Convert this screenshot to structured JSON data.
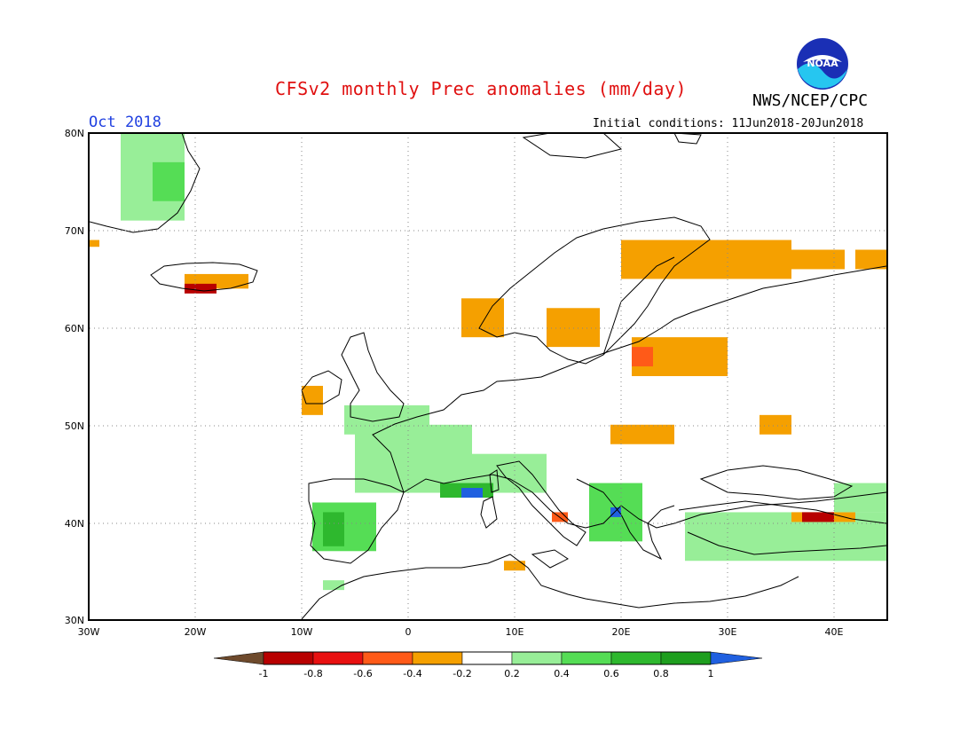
{
  "header": {
    "title": "CFSv2 monthly Prec anomalies (mm/day)",
    "month": "Oct 2018",
    "agency": "NWS/NCEP/CPC",
    "initial_conditions": "Initial conditions: 11Jun2018-20Jun2018",
    "logo_text": "NOAA"
  },
  "axes": {
    "lat_labels": [
      "80N",
      "70N",
      "60N",
      "50N",
      "40N",
      "30N"
    ],
    "lon_labels": [
      "30W",
      "20W",
      "10W",
      "0",
      "10E",
      "20E",
      "30E",
      "40E"
    ]
  },
  "colorbar": {
    "ticks": [
      "-1",
      "-0.8",
      "-0.6",
      "-0.4",
      "-0.2",
      "0.2",
      "0.4",
      "0.6",
      "0.8",
      "1"
    ],
    "colors": [
      "#6e4a2c",
      "#b80000",
      "#e81010",
      "#ff5a18",
      "#f5a000",
      "#ffffff",
      "#98ee98",
      "#55dd55",
      "#2eb82e",
      "#1e9e1e",
      "#2060e0"
    ]
  },
  "map": {
    "land_color": "#ffffff",
    "coast_color": "#000000",
    "grid_style": "dotted",
    "anomaly_patches": [
      {
        "name": "greenland",
        "color": "#98ee98",
        "lon": [
          -27,
          -21
        ],
        "lat": [
          71,
          80
        ]
      },
      {
        "name": "greenland-core",
        "color": "#55dd55",
        "lon": [
          -24,
          -21
        ],
        "lat": [
          73,
          77
        ]
      },
      {
        "name": "iceland",
        "color": "#f5a000",
        "lon": [
          -21,
          -15
        ],
        "lat": [
          64,
          65.5
        ]
      },
      {
        "name": "iceland-dry",
        "color": "#b80000",
        "lon": [
          -21,
          -18
        ],
        "lat": [
          63.5,
          64.5
        ]
      },
      {
        "name": "jan-mayen",
        "color": "#f5a000",
        "lon": [
          -30,
          -29
        ],
        "lat": [
          68.3,
          69
        ]
      },
      {
        "name": "norway",
        "color": "#f5a000",
        "lon": [
          5,
          9
        ],
        "lat": [
          59,
          63
        ]
      },
      {
        "name": "sweden",
        "color": "#f5a000",
        "lon": [
          13,
          18
        ],
        "lat": [
          58,
          62
        ]
      },
      {
        "name": "n-scandinavia",
        "color": "#f5a000",
        "lon": [
          20,
          36
        ],
        "lat": [
          65,
          69
        ]
      },
      {
        "name": "kola",
        "color": "#f5a000",
        "lon": [
          35,
          41
        ],
        "lat": [
          66,
          68
        ]
      },
      {
        "name": "barents-east",
        "color": "#f5a000",
        "lon": [
          42,
          45
        ],
        "lat": [
          66,
          68
        ]
      },
      {
        "name": "baltic",
        "color": "#f5a000",
        "lon": [
          21,
          30
        ],
        "lat": [
          55,
          59
        ]
      },
      {
        "name": "baltic-dry",
        "color": "#ff5a18",
        "lon": [
          21,
          23
        ],
        "lat": [
          56,
          58
        ]
      },
      {
        "name": "ukraine",
        "color": "#f5a000",
        "lon": [
          33,
          36
        ],
        "lat": [
          49,
          51
        ]
      },
      {
        "name": "poland-south",
        "color": "#f5a000",
        "lon": [
          19,
          25
        ],
        "lat": [
          48,
          50
        ]
      },
      {
        "name": "ireland",
        "color": "#f5a000",
        "lon": [
          -10,
          -8
        ],
        "lat": [
          51,
          54
        ]
      },
      {
        "name": "england",
        "color": "#98ee98",
        "lon": [
          -6,
          2
        ],
        "lat": [
          49,
          52
        ]
      },
      {
        "name": "france",
        "color": "#98ee98",
        "lon": [
          -5,
          6
        ],
        "lat": [
          43,
          50
        ]
      },
      {
        "name": "alps",
        "color": "#98ee98",
        "lon": [
          5,
          13
        ],
        "lat": [
          43,
          47
        ]
      },
      {
        "name": "gulf-lion",
        "color": "#2eb82e",
        "lon": [
          3,
          8
        ],
        "lat": [
          42.5,
          44
        ]
      },
      {
        "name": "gulf-lion-wet",
        "color": "#2060e0",
        "lon": [
          5,
          7
        ],
        "lat": [
          42.5,
          43.5
        ]
      },
      {
        "name": "iberia",
        "color": "#55dd55",
        "lon": [
          -9,
          -3
        ],
        "lat": [
          37,
          42
        ]
      },
      {
        "name": "iberia-core",
        "color": "#2eb82e",
        "lon": [
          -8,
          -6
        ],
        "lat": [
          37.5,
          41
        ]
      },
      {
        "name": "balkans",
        "color": "#55dd55",
        "lon": [
          17,
          22
        ],
        "lat": [
          38,
          44
        ]
      },
      {
        "name": "albania",
        "color": "#2060e0",
        "lon": [
          19,
          20
        ],
        "lat": [
          40.5,
          41.5
        ]
      },
      {
        "name": "italy-south",
        "color": "#ff5a18",
        "lon": [
          13.5,
          15
        ],
        "lat": [
          40,
          41
        ]
      },
      {
        "name": "turkey",
        "color": "#98ee98",
        "lon": [
          26,
          45
        ],
        "lat": [
          36,
          41
        ]
      },
      {
        "name": "turkey-dry",
        "color": "#f5a000",
        "lon": [
          36,
          42
        ],
        "lat": [
          40,
          41
        ]
      },
      {
        "name": "turkey-core",
        "color": "#b80000",
        "lon": [
          37,
          40
        ],
        "lat": [
          40,
          41
        ]
      },
      {
        "name": "caucasus",
        "color": "#98ee98",
        "lon": [
          40,
          45
        ],
        "lat": [
          41,
          44
        ]
      },
      {
        "name": "morocco",
        "color": "#98ee98",
        "lon": [
          -8,
          -6
        ],
        "lat": [
          33,
          34
        ]
      },
      {
        "name": "tunisia",
        "color": "#f5a000",
        "lon": [
          9,
          11
        ],
        "lat": [
          35,
          36
        ]
      }
    ]
  }
}
